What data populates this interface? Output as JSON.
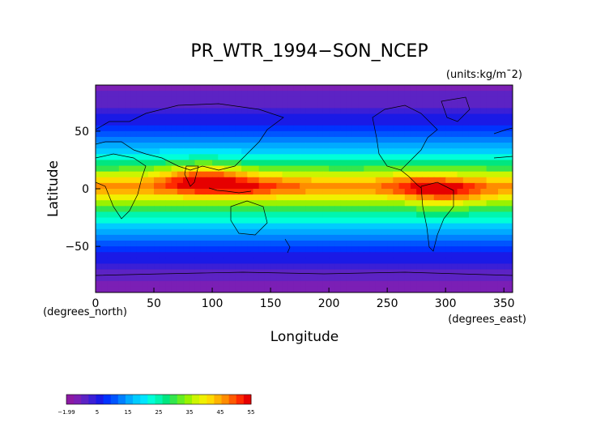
{
  "title": "PR_WTR_1994−SON_NCEP",
  "units": "(units:kg/m¯2)",
  "axes": {
    "xlabel": "Longitude",
    "ylabel": "Latitude",
    "xunit": "(degrees_east)",
    "yunit": "(degrees_north)",
    "xticks": [
      "0",
      "50",
      "100",
      "150",
      "200",
      "250",
      "300",
      "350"
    ],
    "yticks": [
      "50",
      "0",
      "−50"
    ]
  },
  "colorbar": {
    "labels": [
      "−1.99",
      "5",
      "15",
      "25",
      "35",
      "45",
      "55"
    ],
    "colors": [
      "#8c1aa3",
      "#7b1fb5",
      "#5c23c4",
      "#3b1fd6",
      "#1a1ae6",
      "#0033ff",
      "#0055ff",
      "#0080ff",
      "#00aaff",
      "#00ccff",
      "#00e5ff",
      "#00ffd9",
      "#00f5b0",
      "#00e680",
      "#33e64d",
      "#66ee22",
      "#99f200",
      "#ccf500",
      "#f0f000",
      "#ffd900",
      "#ffb300",
      "#ff8c00",
      "#ff5a00",
      "#ff2a00",
      "#e60000"
    ]
  },
  "chart_data": {
    "type": "heatmap",
    "title": "PR_WTR_1994−SON_NCEP",
    "units": "kg/m^2",
    "xlabel": "Longitude",
    "ylabel": "Latitude",
    "xlim": [
      0,
      357.5
    ],
    "ylim": [
      -90,
      90
    ],
    "colorbar_range": [
      -1.99,
      55
    ],
    "zonal_profile": {
      "lat": [
        90,
        75,
        60,
        45,
        30,
        15,
        5,
        0,
        -5,
        -15,
        -30,
        -45,
        -60,
        -75,
        -90
      ],
      "value": [
        2,
        4,
        8,
        14,
        22,
        34,
        45,
        47,
        42,
        32,
        22,
        14,
        8,
        4,
        1
      ]
    },
    "hotspots": [
      {
        "lon": 90,
        "lat": 10,
        "value": 52
      },
      {
        "lon": 120,
        "lat": 2,
        "value": 52
      },
      {
        "lon": 160,
        "lat": 5,
        "value": 47
      },
      {
        "lon": 280,
        "lat": 5,
        "value": 50
      },
      {
        "lon": 300,
        "lat": -5,
        "value": 50
      }
    ]
  }
}
